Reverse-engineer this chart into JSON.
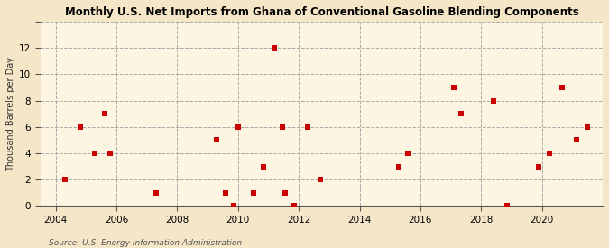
{
  "title": "Monthly U.S. Net Imports from Ghana of Conventional Gasoline Blending Components",
  "ylabel": "Thousand Barrels per Day",
  "source": "Source: U.S. Energy Information Administration",
  "background_color": "#f5e6c8",
  "plot_background_color": "#fdf5e2",
  "marker_color": "#cc0000",
  "marker_size": 22,
  "xlim": [
    2003.5,
    2022.0
  ],
  "ylim": [
    0,
    14
  ],
  "yticks": [
    0,
    2,
    4,
    6,
    8,
    10,
    12,
    14
  ],
  "xticks": [
    2004,
    2006,
    2008,
    2010,
    2012,
    2014,
    2016,
    2018,
    2020
  ],
  "x_data": [
    2004.3,
    2004.8,
    2005.3,
    2005.6,
    2005.8,
    2007.3,
    2009.3,
    2009.6,
    2009.85,
    2010.0,
    2010.5,
    2010.85,
    2011.2,
    2011.45,
    2011.55,
    2011.85,
    2012.3,
    2012.7,
    2015.3,
    2015.6,
    2017.1,
    2017.35,
    2018.4,
    2018.85,
    2019.9,
    2020.25,
    2020.65,
    2021.15,
    2021.5
  ],
  "y_data": [
    2,
    6,
    4,
    7,
    4,
    1,
    5,
    1,
    0,
    6,
    1,
    3,
    12,
    6,
    1,
    0,
    6,
    2,
    3,
    4,
    9,
    7,
    8,
    0,
    3,
    4,
    9,
    5,
    6
  ]
}
